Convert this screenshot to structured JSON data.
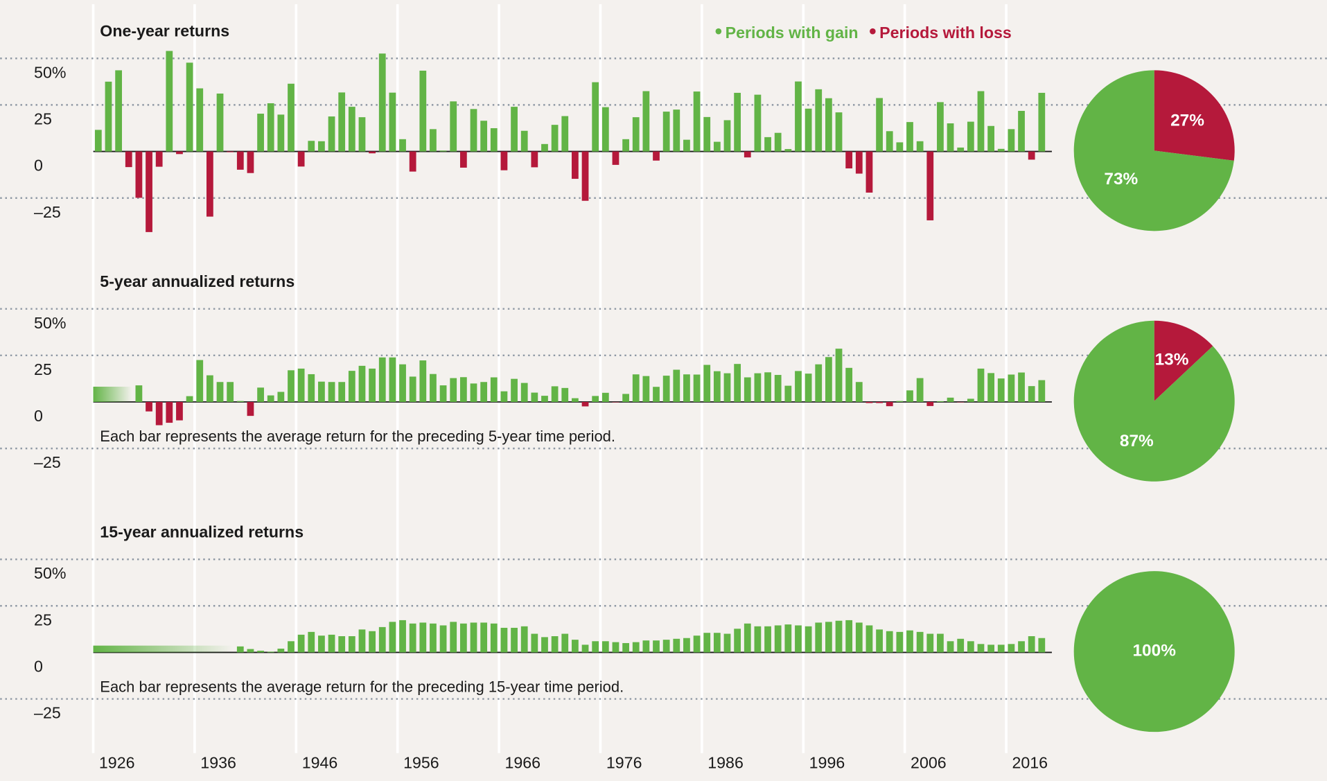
{
  "chart_data": [
    {
      "type": "bar",
      "title": "One-year returns",
      "legend": [
        {
          "name": "Periods with gain",
          "color": "#62b446"
        },
        {
          "name": "Periods with loss",
          "color": "#b5193b"
        }
      ],
      "x": [
        1926,
        1927,
        1928,
        1929,
        1930,
        1931,
        1932,
        1933,
        1934,
        1935,
        1936,
        1937,
        1938,
        1939,
        1940,
        1941,
        1942,
        1943,
        1944,
        1945,
        1946,
        1947,
        1948,
        1949,
        1950,
        1951,
        1952,
        1953,
        1954,
        1955,
        1956,
        1957,
        1958,
        1959,
        1960,
        1961,
        1962,
        1963,
        1964,
        1965,
        1966,
        1967,
        1968,
        1969,
        1970,
        1971,
        1972,
        1973,
        1974,
        1975,
        1976,
        1977,
        1978,
        1979,
        1980,
        1981,
        1982,
        1983,
        1984,
        1985,
        1986,
        1987,
        1988,
        1989,
        1990,
        1991,
        1992,
        1993,
        1994,
        1995,
        1996,
        1997,
        1998,
        1999,
        2000,
        2001,
        2002,
        2003,
        2004,
        2005,
        2006,
        2007,
        2008,
        2009,
        2010,
        2011,
        2012,
        2013,
        2014,
        2015,
        2016,
        2017,
        2018,
        2019
      ],
      "values": [
        11.6,
        37.5,
        43.6,
        -8.4,
        -24.9,
        -43.3,
        -8.2,
        54,
        -1.4,
        47.7,
        33.9,
        -35,
        31.1,
        -0.4,
        -9.8,
        -11.6,
        20.3,
        25.9,
        19.8,
        36.4,
        -8.1,
        5.7,
        5.5,
        18.8,
        31.7,
        24,
        18.4,
        -1,
        52.6,
        31.6,
        6.6,
        -10.8,
        43.4,
        12,
        0.5,
        26.9,
        -8.7,
        22.8,
        16.5,
        12.5,
        -10.1,
        24,
        11.1,
        -8.5,
        4,
        14.3,
        19,
        -14.7,
        -26.5,
        37.2,
        23.8,
        -7.2,
        6.6,
        18.4,
        32.4,
        -4.9,
        21.4,
        22.5,
        6.3,
        32.2,
        18.5,
        5.2,
        16.8,
        31.5,
        -3.2,
        30.5,
        7.7,
        10,
        1.3,
        37.6,
        23,
        33.4,
        28.6,
        21,
        -9.1,
        -11.9,
        -22.1,
        28.7,
        10.9,
        4.9,
        15.8,
        5.5,
        -37,
        26.5,
        15.1,
        2.1,
        16,
        32.4,
        13.7,
        1.4,
        12,
        21.8,
        -4.4,
        31.5
      ],
      "xlim": [
        1925.5,
        2020
      ],
      "ylim": [
        -45,
        60
      ],
      "yticks": [
        {
          "value": 50,
          "label": "50%"
        },
        25,
        0,
        {
          "value": -25,
          "label": "–25"
        }
      ]
    },
    {
      "type": "pie",
      "values": [
        27,
        73
      ],
      "value_labels": [
        "27%",
        "73%"
      ],
      "colors": [
        "#b5193b",
        "#62b446"
      ]
    },
    {
      "type": "bar",
      "title": "5-year annualized returns",
      "note": "Each bar represents the average return for the preceding 5-year time period.",
      "x": [
        1930,
        1931,
        1932,
        1933,
        1934,
        1935,
        1936,
        1937,
        1938,
        1939,
        1940,
        1941,
        1942,
        1943,
        1944,
        1945,
        1946,
        1947,
        1948,
        1949,
        1950,
        1951,
        1952,
        1953,
        1954,
        1955,
        1956,
        1957,
        1958,
        1959,
        1960,
        1961,
        1962,
        1963,
        1964,
        1965,
        1966,
        1967,
        1968,
        1969,
        1970,
        1971,
        1972,
        1973,
        1974,
        1975,
        1976,
        1977,
        1978,
        1979,
        1980,
        1981,
        1982,
        1983,
        1984,
        1985,
        1986,
        1987,
        1988,
        1989,
        1990,
        1991,
        1992,
        1993,
        1994,
        1995,
        1996,
        1997,
        1998,
        1999,
        2000,
        2001,
        2002,
        2003,
        2004,
        2005,
        2006,
        2007,
        2008,
        2009,
        2010,
        2011,
        2012,
        2013,
        2014,
        2015,
        2016,
        2017,
        2018,
        2019
      ],
      "values": [
        8.9,
        -5.1,
        -12.5,
        -11.2,
        -9.9,
        3.1,
        22.5,
        14.3,
        10.7,
        10.7,
        0.5,
        -7.5,
        7.7,
        3.5,
        5.4,
        17,
        17.9,
        14.9,
        10.9,
        10.7,
        10.7,
        16.7,
        19.4,
        17.9,
        23.9,
        23.9,
        20.2,
        13.6,
        22.3,
        15,
        8.9,
        12.8,
        13.3,
        9.9,
        10.7,
        13.2,
        5.7,
        12.4,
        10.2,
        5,
        3.3,
        8.4,
        7.5,
        2,
        -2.4,
        3.2,
        4.9,
        -0.2,
        4.3,
        14.8,
        13.9,
        8.1,
        14.1,
        17.3,
        14.8,
        14.7,
        19.9,
        16.5,
        15.4,
        20.4,
        13.2,
        15.4,
        15.9,
        14.5,
        8.7,
        16.6,
        15.2,
        20.2,
        24.1,
        28.6,
        18.3,
        10.7,
        -0.6,
        -0.6,
        -2.3,
        0.5,
        6.2,
        12.8,
        -2.2,
        0.4,
        2.3,
        -0.2,
        1.7,
        17.9,
        15.5,
        12.6,
        14.7,
        15.8,
        8.5,
        11.7
      ],
      "xlim": [
        1925.5,
        2020
      ],
      "ylim": [
        -45,
        60
      ],
      "yticks": [
        {
          "value": 50,
          "label": "50%"
        },
        25,
        0,
        {
          "value": -25,
          "label": "–25"
        }
      ]
    },
    {
      "type": "pie",
      "values": [
        13,
        87
      ],
      "value_labels": [
        "13%",
        "87%"
      ],
      "colors": [
        "#b5193b",
        "#62b446"
      ]
    },
    {
      "type": "bar",
      "title": "15-year annualized returns",
      "note": "Each bar represents the average return for the preceding 15-year time period.",
      "x": [
        1940,
        1941,
        1942,
        1943,
        1944,
        1945,
        1946,
        1947,
        1948,
        1949,
        1950,
        1951,
        1952,
        1953,
        1954,
        1955,
        1956,
        1957,
        1958,
        1959,
        1960,
        1961,
        1962,
        1963,
        1964,
        1965,
        1966,
        1967,
        1968,
        1969,
        1970,
        1971,
        1972,
        1973,
        1974,
        1975,
        1976,
        1977,
        1978,
        1979,
        1980,
        1981,
        1982,
        1983,
        1984,
        1985,
        1986,
        1987,
        1988,
        1989,
        1990,
        1991,
        1992,
        1993,
        1994,
        1995,
        1996,
        1997,
        1998,
        1999,
        2000,
        2001,
        2002,
        2003,
        2004,
        2005,
        2006,
        2007,
        2008,
        2009,
        2010,
        2011,
        2012,
        2013,
        2014,
        2015,
        2016,
        2017,
        2018,
        2019
      ],
      "values": [
        3.2,
        1.8,
        0.9,
        0.4,
        2,
        6,
        9.5,
        11,
        9,
        9.5,
        8.7,
        8.7,
        12.3,
        11.4,
        13.6,
        16.4,
        17.3,
        15.5,
        16,
        15.5,
        14.5,
        16.4,
        15.5,
        16,
        16,
        15.5,
        13.2,
        13.2,
        14,
        10,
        8.2,
        8.7,
        10,
        6.8,
        4.1,
        6,
        6,
        5.5,
        5,
        5.5,
        6.4,
        6.4,
        6.8,
        7.3,
        7.7,
        9,
        10.5,
        10.5,
        10,
        12.7,
        15.5,
        14,
        14,
        14.5,
        15,
        14.5,
        14,
        16,
        16.4,
        17,
        17.3,
        16,
        14.5,
        12.3,
        11.4,
        11,
        11.8,
        11,
        10,
        10,
        6,
        7.3,
        6,
        4.5,
        4.1,
        4.1,
        4.5,
        6,
        8.7,
        7.7
      ],
      "xlim": [
        1925.5,
        2020
      ],
      "ylim": [
        -45,
        60
      ],
      "yticks": [
        {
          "value": 50,
          "label": "50%"
        },
        25,
        0,
        {
          "value": -25,
          "label": "–25"
        }
      ],
      "xticks": [
        1926,
        1936,
        1946,
        1956,
        1966,
        1976,
        1986,
        1996,
        2006,
        2016
      ]
    },
    {
      "type": "pie",
      "values": [
        100
      ],
      "value_labels": [
        "100%"
      ],
      "colors": [
        "#62b446"
      ]
    }
  ]
}
